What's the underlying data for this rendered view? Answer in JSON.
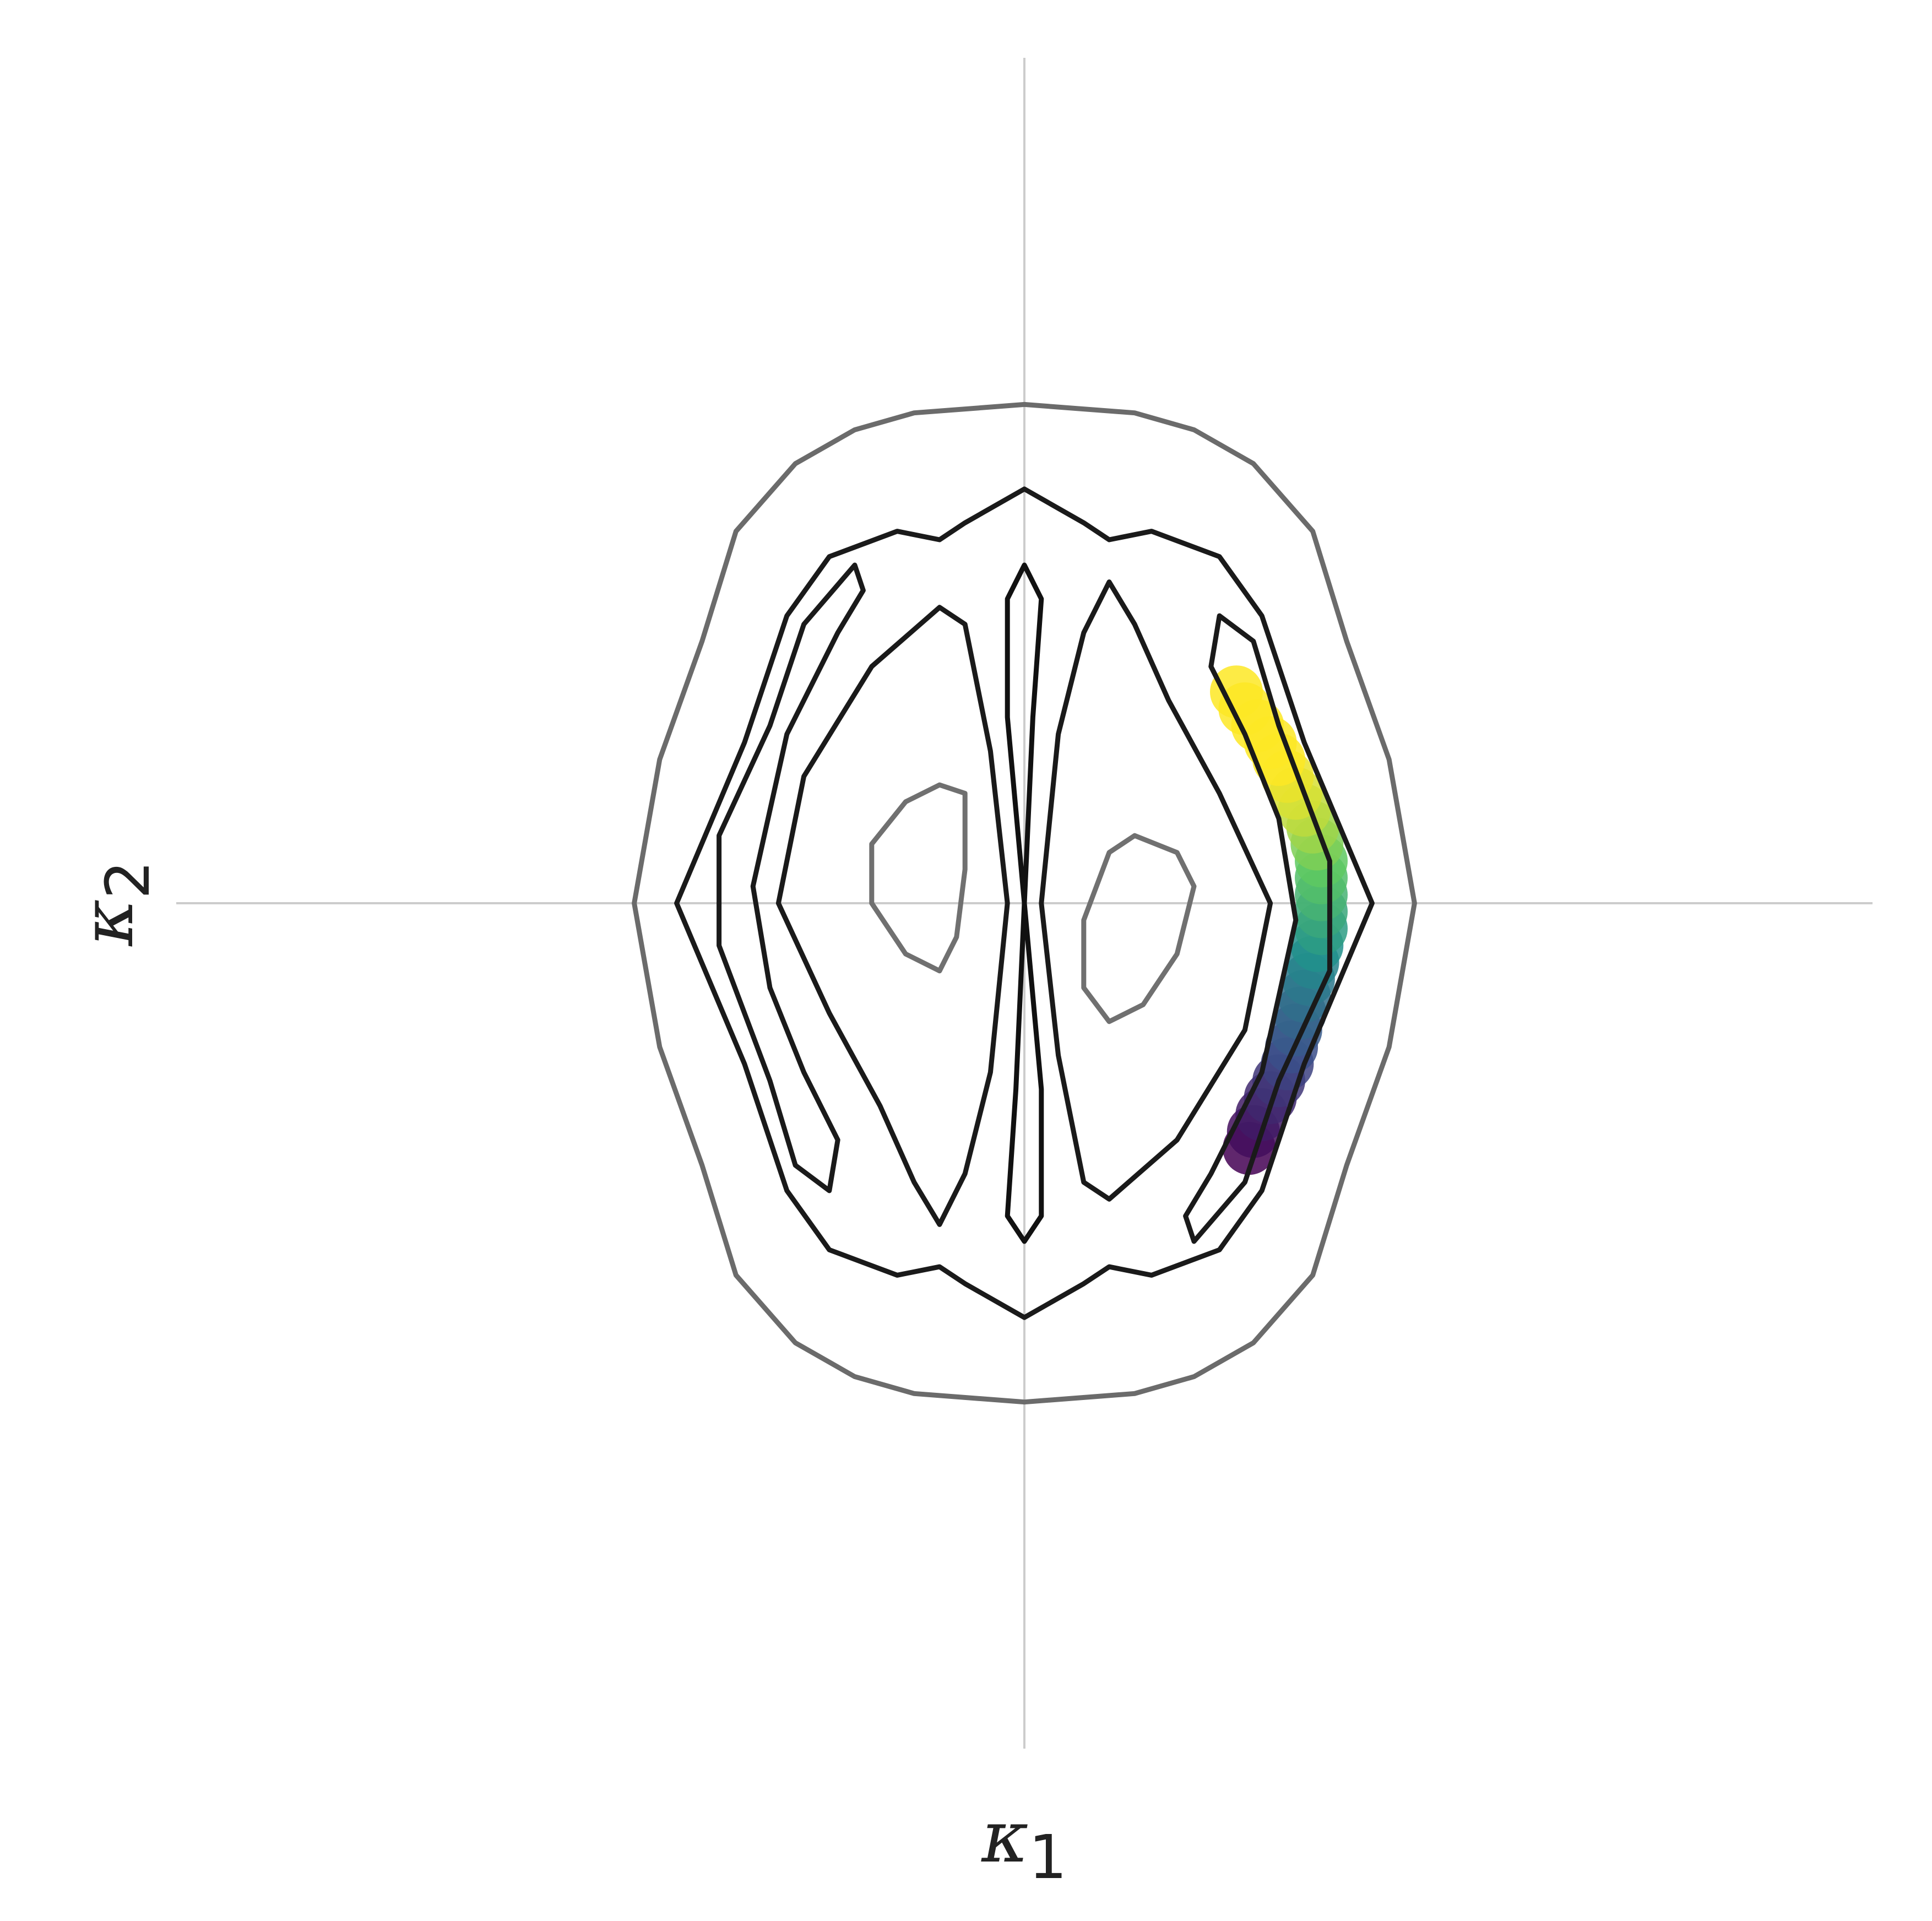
{
  "chart_data": {
    "type": "contour",
    "title": "",
    "xlabel": {
      "symbol": "κ",
      "subscript": "1"
    },
    "ylabel": {
      "symbol": "κ",
      "subscript": "2"
    },
    "xlim": [
      -1.0,
      1.0
    ],
    "ylim": [
      -1.0,
      1.0
    ],
    "grid": "crosshair-at-origin",
    "colors": {
      "outer_contour": "#6b6b6b",
      "inner_contour": "#1a1a1a",
      "core_contour": "#707070",
      "grid": "#cccccc",
      "viridis": [
        "#440154",
        "#3b528b",
        "#21918c",
        "#5ec962",
        "#fde725"
      ]
    },
    "contours": [
      {
        "level": "outer",
        "color": "#6b6b6b",
        "points": [
          [
            0.0,
            0.59
          ],
          [
            0.13,
            0.58
          ],
          [
            0.2,
            0.56
          ],
          [
            0.27,
            0.52
          ],
          [
            0.34,
            0.44
          ],
          [
            0.38,
            0.31
          ],
          [
            0.43,
            0.17
          ],
          [
            0.46,
            0.0
          ],
          [
            0.43,
            -0.17
          ],
          [
            0.38,
            -0.31
          ],
          [
            0.34,
            -0.44
          ],
          [
            0.27,
            -0.52
          ],
          [
            0.2,
            -0.56
          ],
          [
            0.13,
            -0.58
          ],
          [
            0.0,
            -0.59
          ],
          [
            -0.13,
            -0.58
          ],
          [
            -0.2,
            -0.56
          ],
          [
            -0.27,
            -0.52
          ],
          [
            -0.34,
            -0.44
          ],
          [
            -0.38,
            -0.31
          ],
          [
            -0.43,
            -0.17
          ],
          [
            -0.46,
            0.0
          ],
          [
            -0.43,
            0.17
          ],
          [
            -0.38,
            0.31
          ],
          [
            -0.34,
            0.44
          ],
          [
            -0.27,
            0.52
          ],
          [
            -0.2,
            0.56
          ],
          [
            -0.13,
            0.58
          ]
        ]
      },
      {
        "level": "mid",
        "color": "#1a1a1a",
        "points": [
          [
            0.0,
            0.49
          ],
          [
            0.07,
            0.45
          ],
          [
            0.1,
            0.43
          ],
          [
            0.15,
            0.44
          ],
          [
            0.23,
            0.41
          ],
          [
            0.28,
            0.34
          ],
          [
            0.33,
            0.19
          ],
          [
            0.41,
            0.0
          ],
          [
            0.33,
            -0.19
          ],
          [
            0.28,
            -0.34
          ],
          [
            0.23,
            -0.41
          ],
          [
            0.15,
            -0.44
          ],
          [
            0.1,
            -0.43
          ],
          [
            0.07,
            -0.45
          ],
          [
            0.0,
            -0.49
          ],
          [
            -0.07,
            -0.45
          ],
          [
            -0.1,
            -0.43
          ],
          [
            -0.15,
            -0.44
          ],
          [
            -0.23,
            -0.41
          ],
          [
            -0.28,
            -0.34
          ],
          [
            -0.33,
            -0.19
          ],
          [
            -0.41,
            0.0
          ],
          [
            -0.33,
            0.19
          ],
          [
            -0.28,
            0.34
          ],
          [
            -0.23,
            0.41
          ],
          [
            -0.15,
            0.44
          ],
          [
            -0.1,
            0.43
          ],
          [
            -0.07,
            0.45
          ]
        ]
      },
      {
        "level": "inner-right",
        "color": "#1a1a1a",
        "points": [
          [
            0.23,
            0.34
          ],
          [
            0.27,
            0.31
          ],
          [
            0.3,
            0.21
          ],
          [
            0.36,
            0.05
          ],
          [
            0.36,
            -0.08
          ],
          [
            0.3,
            -0.21
          ],
          [
            0.26,
            -0.33
          ],
          [
            0.2,
            -0.4
          ],
          [
            0.19,
            -0.37
          ],
          [
            0.22,
            -0.32
          ],
          [
            0.28,
            -0.2
          ],
          [
            0.32,
            -0.02
          ],
          [
            0.3,
            0.1
          ],
          [
            0.26,
            0.2
          ],
          [
            0.22,
            0.28
          ]
        ]
      },
      {
        "level": "inner-left",
        "color": "#1a1a1a",
        "points": [
          [
            -0.2,
            0.4
          ],
          [
            -0.19,
            0.37
          ],
          [
            -0.22,
            0.32
          ],
          [
            -0.28,
            0.2
          ],
          [
            -0.32,
            0.02
          ],
          [
            -0.3,
            -0.1
          ],
          [
            -0.26,
            -0.2
          ],
          [
            -0.22,
            -0.28
          ],
          [
            -0.23,
            -0.34
          ],
          [
            -0.27,
            -0.31
          ],
          [
            -0.3,
            -0.21
          ],
          [
            -0.36,
            -0.05
          ],
          [
            -0.36,
            0.08
          ],
          [
            -0.3,
            0.21
          ],
          [
            -0.26,
            0.33
          ]
        ]
      },
      {
        "level": "lobe-right",
        "color": "#1a1a1a",
        "points": [
          [
            0.1,
            0.38
          ],
          [
            0.13,
            0.33
          ],
          [
            0.17,
            0.24
          ],
          [
            0.23,
            0.13
          ],
          [
            0.29,
            0.0
          ],
          [
            0.26,
            -0.15
          ],
          [
            0.18,
            -0.28
          ],
          [
            0.1,
            -0.35
          ],
          [
            0.07,
            -0.33
          ],
          [
            0.04,
            -0.18
          ],
          [
            0.02,
            0.0
          ],
          [
            0.04,
            0.2
          ],
          [
            0.07,
            0.32
          ]
        ]
      },
      {
        "level": "lobe-left",
        "color": "#1a1a1a",
        "points": [
          [
            -0.1,
            -0.38
          ],
          [
            -0.13,
            -0.33
          ],
          [
            -0.17,
            -0.24
          ],
          [
            -0.23,
            -0.13
          ],
          [
            -0.29,
            0.0
          ],
          [
            -0.26,
            0.15
          ],
          [
            -0.18,
            0.28
          ],
          [
            -0.1,
            0.35
          ],
          [
            -0.07,
            0.33
          ],
          [
            -0.04,
            0.18
          ],
          [
            -0.02,
            0.0
          ],
          [
            -0.04,
            -0.2
          ],
          [
            -0.07,
            -0.32
          ]
        ]
      },
      {
        "level": "spindle",
        "color": "#111111",
        "points": [
          [
            0.0,
            0.4
          ],
          [
            0.02,
            0.36
          ],
          [
            0.01,
            0.22
          ],
          [
            0.0,
            0.0
          ],
          [
            0.02,
            -0.22
          ],
          [
            0.02,
            -0.37
          ],
          [
            0.0,
            -0.4
          ],
          [
            -0.02,
            -0.37
          ],
          [
            -0.01,
            -0.22
          ],
          [
            0.0,
            0.0
          ],
          [
            -0.02,
            0.22
          ],
          [
            -0.02,
            0.36
          ]
        ]
      },
      {
        "level": "core-left",
        "color": "#707070",
        "points": [
          [
            -0.1,
            0.14
          ],
          [
            -0.07,
            0.13
          ],
          [
            -0.07,
            0.04
          ],
          [
            -0.08,
            -0.04
          ],
          [
            -0.1,
            -0.08
          ],
          [
            -0.14,
            -0.06
          ],
          [
            -0.18,
            0.0
          ],
          [
            -0.18,
            0.07
          ],
          [
            -0.14,
            0.12
          ]
        ]
      },
      {
        "level": "core-right",
        "color": "#707070",
        "points": [
          [
            0.13,
            0.08
          ],
          [
            0.18,
            0.06
          ],
          [
            0.2,
            0.02
          ],
          [
            0.18,
            -0.06
          ],
          [
            0.14,
            -0.12
          ],
          [
            0.1,
            -0.14
          ],
          [
            0.07,
            -0.1
          ],
          [
            0.07,
            -0.02
          ],
          [
            0.1,
            0.06
          ]
        ]
      }
    ],
    "points": [
      {
        "x": 0.265,
        "y": -0.29,
        "c": 0.0
      },
      {
        "x": 0.27,
        "y": -0.27,
        "c": 0.04
      },
      {
        "x": 0.28,
        "y": -0.25,
        "c": 0.08
      },
      {
        "x": 0.29,
        "y": -0.23,
        "c": 0.12
      },
      {
        "x": 0.3,
        "y": -0.21,
        "c": 0.16
      },
      {
        "x": 0.31,
        "y": -0.19,
        "c": 0.2
      },
      {
        "x": 0.315,
        "y": -0.17,
        "c": 0.24
      },
      {
        "x": 0.32,
        "y": -0.15,
        "c": 0.28
      },
      {
        "x": 0.325,
        "y": -0.13,
        "c": 0.32
      },
      {
        "x": 0.33,
        "y": -0.11,
        "c": 0.36
      },
      {
        "x": 0.335,
        "y": -0.09,
        "c": 0.4
      },
      {
        "x": 0.34,
        "y": -0.07,
        "c": 0.45
      },
      {
        "x": 0.345,
        "y": -0.05,
        "c": 0.5
      },
      {
        "x": 0.35,
        "y": -0.03,
        "c": 0.55
      },
      {
        "x": 0.35,
        "y": -0.01,
        "c": 0.6
      },
      {
        "x": 0.35,
        "y": 0.01,
        "c": 0.65
      },
      {
        "x": 0.35,
        "y": 0.03,
        "c": 0.7
      },
      {
        "x": 0.35,
        "y": 0.05,
        "c": 0.75
      },
      {
        "x": 0.345,
        "y": 0.07,
        "c": 0.8
      },
      {
        "x": 0.34,
        "y": 0.09,
        "c": 0.85
      },
      {
        "x": 0.33,
        "y": 0.11,
        "c": 0.9
      },
      {
        "x": 0.32,
        "y": 0.13,
        "c": 0.94
      },
      {
        "x": 0.31,
        "y": 0.15,
        "c": 0.97
      },
      {
        "x": 0.3,
        "y": 0.17,
        "c": 1.0
      },
      {
        "x": 0.29,
        "y": 0.19,
        "c": 1.0
      },
      {
        "x": 0.275,
        "y": 0.21,
        "c": 1.0
      },
      {
        "x": 0.26,
        "y": 0.23,
        "c": 1.0
      },
      {
        "x": 0.25,
        "y": 0.25,
        "c": 1.0
      }
    ]
  }
}
